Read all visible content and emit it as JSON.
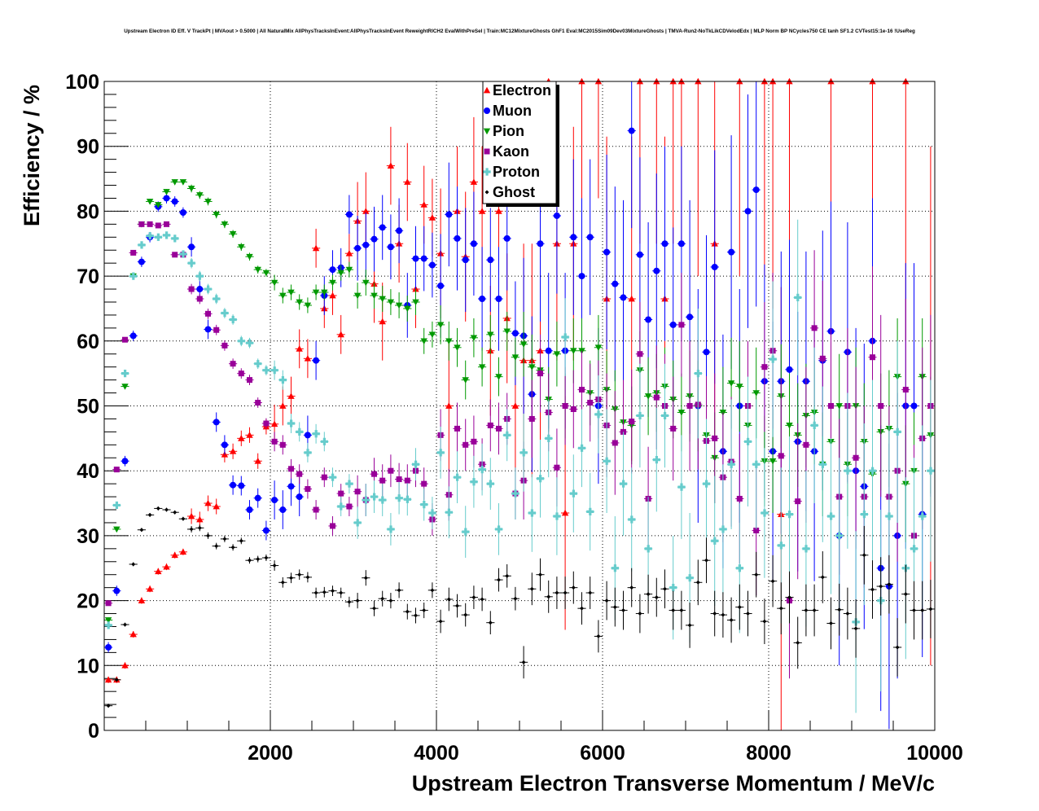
{
  "chart_data": {
    "type": "scatter",
    "title": "Upstream Electron ID Eff. V TrackPt | MVAout > 0.5000 | All NaturalMix AllPhysTracksInEvent:AllPhysTracksInEvent ReweightRICH2 EvalWithPreSel | Train:MC12MixtureGhosts GhF1 Eval:MC2015Sim09Dev03MixtureGhosts | TMVA-Run2-NoTkLikCDVelodEdx | MLP Norm BP NCycles750 CE tanh SF1.2 CVTest15:1e-16 !UseReg",
    "xlabel": "Upstream Electron Transverse Momentum / MeV/c",
    "ylabel": "Efficiency / %",
    "xlim": [
      0,
      10000
    ],
    "ylim": [
      0,
      100
    ],
    "xticks": [
      "2000",
      "4000",
      "6000",
      "8000",
      "10000"
    ],
    "yticks": [
      "0",
      "10",
      "20",
      "30",
      "40",
      "50",
      "60",
      "70",
      "80",
      "90",
      "100"
    ],
    "grid": true,
    "legend_position": "top-center",
    "bin_width": 100,
    "x_first_bin_center": 50,
    "series": [
      {
        "name": "Electron",
        "color": "#ff0000",
        "marker": "triangle-up",
        "err_by_1000": [
          0.5,
          1.2,
          3,
          6,
          10,
          18,
          25,
          30,
          35,
          40
        ],
        "values": [
          7.8,
          7.8,
          10,
          14.8,
          20,
          21.8,
          24.5,
          25.2,
          27,
          27.5,
          33,
          32.5,
          35,
          34.5,
          42.5,
          43,
          45,
          45.5,
          41.5,
          46.8,
          47.2,
          50,
          51.5,
          58.8,
          57.3,
          74.3,
          65,
          67,
          61,
          73.5,
          78.5,
          80,
          68.8,
          63,
          87,
          75,
          84.5,
          68,
          81,
          79,
          73.5,
          50,
          80,
          73,
          84.5,
          80,
          58.5,
          80,
          63.5,
          50,
          57,
          57,
          58.5,
          100,
          75,
          33.5,
          75,
          100,
          null,
          100,
          66.5,
          null,
          null,
          66.5,
          100,
          null,
          100,
          66.5,
          100,
          100,
          null,
          100,
          null,
          75,
          null,
          null,
          100,
          null,
          null,
          100,
          100,
          33.3,
          100,
          null,
          null,
          null,
          null,
          100,
          null,
          null,
          null,
          null,
          100,
          null,
          null,
          null,
          100,
          null,
          null,
          50
        ]
      },
      {
        "name": "Muon",
        "color": "#0000ff",
        "marker": "circle",
        "err_by_1000": [
          0.8,
          1.5,
          3,
          5,
          8,
          12,
          15,
          18,
          20,
          22
        ],
        "values": [
          12.8,
          21.5,
          41.5,
          60.8,
          72.2,
          76,
          80.7,
          82,
          81.5,
          79.8,
          74.5,
          68,
          61.8,
          47.5,
          44,
          37.8,
          37.7,
          34,
          35.8,
          30.8,
          35.5,
          34,
          37.6,
          36,
          45.5,
          57,
          67,
          71,
          71.3,
          79.5,
          74.3,
          74.8,
          75.7,
          77.5,
          74.5,
          77,
          65.5,
          72.7,
          72.7,
          71.7,
          68.5,
          79.5,
          75.8,
          72.5,
          75,
          66.5,
          72.5,
          66.5,
          75.8,
          61.2,
          60.8,
          51.8,
          75,
          58.5,
          79.3,
          58.5,
          76,
          70,
          76,
          50,
          73.7,
          68.8,
          66.7,
          92.4,
          73.3,
          63.3,
          70.8,
          75,
          62.5,
          75,
          63.7,
          50,
          58.3,
          71.4,
          43,
          73.7,
          50,
          80,
          83.3,
          53.8,
          43,
          53.8,
          55.6,
          44.5,
          53.8,
          43,
          57,
          61.5,
          30,
          58.3,
          40,
          37.6,
          60,
          25,
          22.2,
          30,
          50,
          50,
          33.3,
          null
        ]
      },
      {
        "name": "Pion",
        "color": "#009900",
        "marker": "triangle-down",
        "err_by_1000": [
          0.4,
          0.6,
          1.2,
          2,
          3,
          5,
          6,
          7,
          8,
          9
        ],
        "values": [
          17,
          31,
          53,
          70,
          78,
          81.5,
          81,
          83,
          84.5,
          84.5,
          83.5,
          82.5,
          81.5,
          79.5,
          78,
          76.5,
          74.5,
          73,
          71,
          70.5,
          69,
          67,
          67.5,
          66,
          65.5,
          67.5,
          67.5,
          69,
          70.5,
          71,
          67,
          69,
          67,
          66.5,
          66,
          65.5,
          65,
          66,
          60,
          61,
          62.5,
          60,
          59,
          54,
          60.5,
          56,
          61,
          54.5,
          61.5,
          57.5,
          59.5,
          56,
          55.5,
          51,
          58,
          50,
          58.5,
          58.5,
          52,
          59,
          52.5,
          49.5,
          47.5,
          47,
          55.5,
          51.5,
          52,
          53,
          51,
          49,
          51.5,
          50,
          45.5,
          42,
          49,
          53.5,
          53,
          47,
          52,
          41.5,
          41.5,
          51.5,
          47,
          45.5,
          48.5,
          49,
          41,
          44.5,
          50,
          41,
          50,
          44.5,
          39.5,
          46,
          46.5,
          54.5,
          38,
          40,
          54.5,
          45.5
        ]
      },
      {
        "name": "Kaon",
        "color": "#990099",
        "marker": "square",
        "err_by_1000": [
          0.4,
          0.8,
          1.5,
          2.5,
          4,
          6,
          8,
          10,
          12,
          14
        ],
        "values": [
          19.6,
          40.2,
          60.2,
          73.6,
          78,
          78,
          77.8,
          78,
          73.3,
          73.3,
          68,
          66.5,
          64.2,
          61.7,
          59.3,
          56.5,
          55,
          54,
          50.5,
          47.3,
          44.5,
          44,
          40.3,
          39.5,
          37.2,
          34,
          39,
          31.5,
          36.5,
          34.5,
          36.8,
          35.5,
          39.5,
          38.5,
          40,
          38.7,
          38.5,
          40,
          38,
          32.5,
          45.5,
          36.3,
          46.5,
          44,
          44.5,
          41,
          47,
          46.5,
          48,
          36.5,
          38.5,
          48,
          55,
          49,
          40.5,
          50,
          49.5,
          52.5,
          50.5,
          51,
          47,
          44.3,
          46,
          47.6,
          58,
          35.7,
          51.3,
          50,
          46.5,
          62.5,
          50,
          50.2,
          44.6,
          45,
          39,
          41.4,
          35.7,
          50,
          30.8,
          56,
          58.5,
          42.3,
          20,
          35.3,
          44,
          62,
          57.3,
          50,
          36,
          50,
          42,
          36,
          57.5,
          50,
          36,
          40,
          52.5,
          30,
          45,
          50
        ]
      },
      {
        "name": "Proton",
        "color": "#66cccc",
        "marker": "cross",
        "err_by_1000": [
          0.4,
          0.8,
          1.5,
          2.5,
          4,
          6,
          8,
          10,
          12,
          14
        ],
        "values": [
          16.2,
          34.7,
          55,
          70,
          74.8,
          76.2,
          76,
          76.3,
          75.8,
          73.4,
          72,
          70,
          68,
          66.5,
          64.3,
          63.3,
          60,
          59.7,
          56.5,
          55.5,
          55.5,
          54,
          47.3,
          46,
          42.8,
          45.7,
          44.5,
          39,
          34.5,
          38,
          32,
          35.5,
          36,
          35.5,
          31,
          35.8,
          35.6,
          41,
          34.8,
          33.5,
          42.8,
          33.6,
          39,
          30.6,
          38.3,
          40.2,
          38,
          31,
          45.5,
          36.5,
          42.8,
          33.5,
          38.8,
          45,
          33,
          60.6,
          36.5,
          43.5,
          33.7,
          48.7,
          41.5,
          25,
          38,
          32.5,
          48.5,
          28,
          41.7,
          48.5,
          22,
          37.5,
          23.5,
          55,
          38,
          29.2,
          31,
          41,
          25,
          44.5,
          41,
          33.5,
          57.2,
          28.5,
          33.3,
          66.7,
          28,
          47,
          41,
          33,
          30,
          40,
          16.7,
          33.3,
          40,
          20,
          33,
          46,
          25,
          28,
          33,
          40
        ]
      },
      {
        "name": "Ghost",
        "color": "#000000",
        "marker": "diamond",
        "err_by_1000": [
          0.3,
          0.5,
          0.8,
          1.2,
          1.8,
          2.5,
          3,
          3.5,
          4,
          4.5
        ],
        "values": [
          3.8,
          7.8,
          16.3,
          25.6,
          30.9,
          33.2,
          34.2,
          34,
          33.6,
          32.6,
          31,
          31.2,
          30,
          28.4,
          29.5,
          28.2,
          29.2,
          26.2,
          26.4,
          26.6,
          25.4,
          22.8,
          23.5,
          24,
          23.6,
          21.2,
          21.3,
          21.5,
          21.2,
          19.8,
          20,
          23.5,
          18.8,
          20.3,
          20,
          21.6,
          18.3,
          17.7,
          18.5,
          21.6,
          16.8,
          20.2,
          19.2,
          17.8,
          20.5,
          20.2,
          16.6,
          23.2,
          23.8,
          20.3,
          10.5,
          21.8,
          24,
          20.6,
          21.2,
          21.2,
          22,
          18.8,
          21.2,
          14.5,
          20,
          19,
          18.5,
          22,
          18,
          21,
          20.5,
          21.8,
          18.5,
          18.5,
          16.2,
          22.8,
          26.2,
          18,
          17.8,
          17,
          19,
          18,
          24,
          16.8,
          23,
          18.8,
          20.5,
          13.5,
          18.5,
          18.5,
          23.6,
          16.5,
          18.6,
          18,
          15.7,
          27,
          21.7,
          22.2,
          22.5,
          12.8,
          21,
          18.5,
          18.5,
          18.7
        ]
      }
    ]
  }
}
